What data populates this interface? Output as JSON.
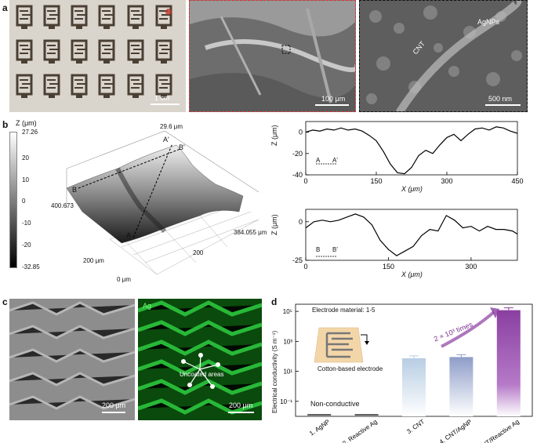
{
  "panel_labels": {
    "a": "a",
    "b": "b",
    "c": "c",
    "d": "d"
  },
  "panel_a": {
    "photo_scale": "1 cm",
    "sem_low_scale": "100 μm",
    "sem_high_scale": "500 nm",
    "label_cnt": "CNT",
    "label_agnps": "AgNPs"
  },
  "panel_b": {
    "colorbar_title": "Z (μm)",
    "colorbar_ticks": [
      "27.26",
      "20",
      "10",
      "0",
      "-10",
      "-20",
      "-32.85"
    ],
    "surface_labels": {
      "top_value": "29.6 μm",
      "left_value": "400.673",
      "right_value": "384.055 μm",
      "y200": "200 μm",
      "x200": "200",
      "origin": "0 μm",
      "A": "A",
      "A_prime": "A'",
      "B": "B",
      "B_prime": "B'"
    },
    "profile_AA": {
      "ylabel": "Z (μm)",
      "xlabel": "X (μm)",
      "yticks": [
        "0",
        "-20",
        "-40"
      ],
      "xticks": [
        "0",
        "150",
        "300",
        "450"
      ],
      "legend_start": "A",
      "legend_end": "A'"
    },
    "profile_BB": {
      "ylabel": "Z (μm)",
      "xlabel": "X (μm)",
      "yticks": [
        "0",
        "-25"
      ],
      "xticks": [
        "0",
        "150",
        "300"
      ],
      "legend_start": "B",
      "legend_end": "B'"
    }
  },
  "panel_c": {
    "sem_scale": "200 μm",
    "map_scale": "200 μm",
    "element_label": "Ag",
    "uncoated_label": "Uncoated areas"
  },
  "chart_data": [
    {
      "type": "line",
      "title": "",
      "xlabel": "X (μm)",
      "ylabel": "Z (μm)",
      "xlim": [
        0,
        450
      ],
      "ylim": [
        -40,
        10
      ],
      "series": [
        {
          "name": "A-A'",
          "x": [
            0,
            15,
            30,
            45,
            60,
            75,
            90,
            105,
            120,
            135,
            150,
            165,
            180,
            195,
            210,
            225,
            240,
            255,
            270,
            285,
            300,
            315,
            330,
            345,
            360,
            375,
            390,
            405,
            420,
            435,
            450
          ],
          "y": [
            0,
            2,
            1,
            3,
            2,
            4,
            2,
            3,
            1,
            -3,
            -8,
            -18,
            -30,
            -38,
            -39,
            -33,
            -22,
            -17,
            -20,
            -12,
            -5,
            -2,
            -8,
            -2,
            3,
            4,
            2,
            5,
            4,
            1,
            -1
          ]
        }
      ]
    },
    {
      "type": "line",
      "title": "",
      "xlabel": "X (μm)",
      "ylabel": "Z (μm)",
      "xlim": [
        0,
        384
      ],
      "ylim": [
        -25,
        8
      ],
      "series": [
        {
          "name": "B-B'",
          "x": [
            0,
            15,
            30,
            45,
            60,
            75,
            90,
            105,
            120,
            135,
            150,
            165,
            180,
            195,
            210,
            225,
            240,
            255,
            270,
            285,
            300,
            315,
            330,
            345,
            360,
            375,
            384
          ],
          "y": [
            -4,
            0,
            1,
            0,
            1,
            3,
            5,
            3,
            -2,
            -12,
            -18,
            -22,
            -19,
            -16,
            -9,
            -5,
            -6,
            4,
            1,
            -4,
            -3,
            -6,
            -3,
            -5,
            -5,
            -6,
            -8
          ]
        }
      ]
    },
    {
      "type": "bar",
      "title": "",
      "xlabel": "",
      "ylabel": "Electrical conductivity (S m⁻¹)",
      "yscale": "log",
      "ylim": [
        0.01,
        300000
      ],
      "categories": [
        "1. AgNP",
        "2. Reactive Ag",
        "3. CNT",
        "4. CNT/AgNP",
        "5. CNT/Reactive Ag"
      ],
      "values": [
        null,
        null,
        75,
        90,
        120000
      ],
      "colors": [
        "#000000",
        "#000000",
        "#b7cde3",
        "#8e9dc8",
        "#8a3fa0"
      ],
      "yticks": [
        "10⁵",
        "10³",
        "10¹",
        "10⁻¹"
      ],
      "annotations": {
        "non_conductive": "Non-conductive",
        "improvement": "2 × 10³ times",
        "inset_title": "Electrode material: 1-5",
        "inset_caption": "Cotton-based electrode"
      }
    }
  ]
}
